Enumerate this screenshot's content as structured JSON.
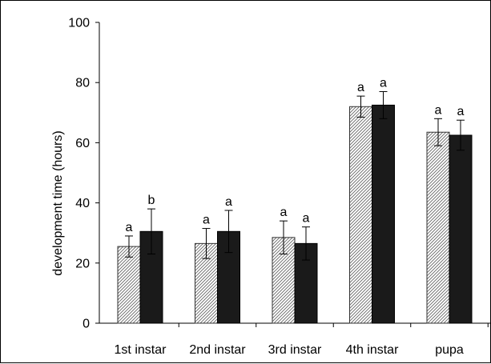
{
  "chart_data": {
    "type": "bar",
    "title": "",
    "xlabel": "",
    "ylabel": "development time (hours)",
    "ylim": [
      0,
      100
    ],
    "yticks": [
      0,
      20,
      40,
      60,
      80,
      100
    ],
    "grid": false,
    "legend": "none",
    "categories": [
      "1st instar",
      "2nd instar",
      "3rd instar",
      "4th instar",
      "pupa"
    ],
    "series": [
      {
        "pattern": "hatched",
        "color": "#ffffff",
        "values": [
          25.5,
          26.5,
          28.5,
          72.0,
          63.5
        ],
        "errors": [
          3.5,
          5.0,
          5.5,
          3.5,
          4.5
        ],
        "significance": [
          "a",
          "a",
          "a",
          "a",
          "a"
        ]
      },
      {
        "pattern": "solid",
        "color": "#1a1a1a",
        "values": [
          30.5,
          30.5,
          26.5,
          72.5,
          62.5
        ],
        "errors": [
          7.5,
          7.0,
          5.5,
          4.5,
          5.0
        ],
        "significance": [
          "b",
          "a",
          "a",
          "a",
          "a"
        ]
      }
    ]
  }
}
